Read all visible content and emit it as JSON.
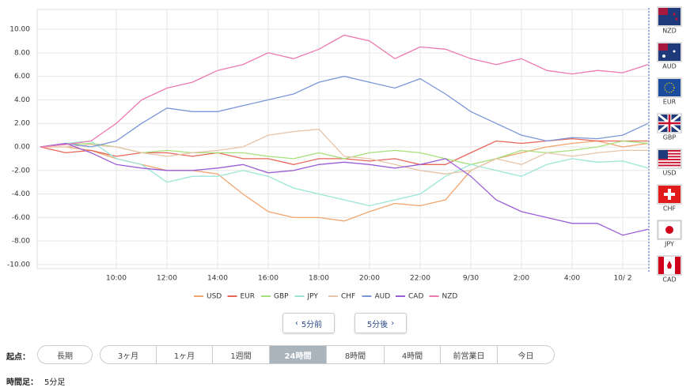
{
  "chart_data": {
    "type": "line",
    "x": [
      -3,
      -2,
      -1,
      0,
      1,
      2,
      3,
      4,
      5,
      6,
      7,
      8,
      9,
      10,
      11,
      12,
      13,
      14,
      15,
      16,
      17,
      18,
      19,
      20,
      21
    ],
    "xlim": [
      -3.125,
      21.03
    ],
    "xticks": [
      {
        "value": 0,
        "label": "10:00"
      },
      {
        "value": 2,
        "label": "12:00"
      },
      {
        "value": 4,
        "label": "14:00"
      },
      {
        "value": 6,
        "label": "16:00"
      },
      {
        "value": 8,
        "label": "18:00"
      },
      {
        "value": 10,
        "label": "20:00"
      },
      {
        "value": 12,
        "label": "22:00"
      },
      {
        "value": 14,
        "label": "9/30"
      },
      {
        "value": 16,
        "label": "2:00"
      },
      {
        "value": 18,
        "label": "4:00"
      },
      {
        "value": 20,
        "label": "10/ 2"
      }
    ],
    "ylim": [
      -10.34,
      11.68
    ],
    "yticks": [
      {
        "value": 10,
        "label": "10.00"
      },
      {
        "value": 8,
        "label": "8.00"
      },
      {
        "value": 6,
        "label": "6.00"
      },
      {
        "value": 4,
        "label": "4.00"
      },
      {
        "value": 2,
        "label": "2.00"
      },
      {
        "value": 0,
        "label": "0.00"
      },
      {
        "value": -2,
        "label": "-2.00"
      },
      {
        "value": -4,
        "label": "-4.00"
      },
      {
        "value": -6,
        "label": "-6.00"
      },
      {
        "value": -8,
        "label": "-8.00"
      },
      {
        "value": -10,
        "label": "-10.00"
      }
    ],
    "grid": true,
    "series": [
      {
        "name": "USD",
        "color": "#f2a46e",
        "values": [
          0,
          0,
          -0.3,
          -1,
          -1.5,
          -2,
          -2,
          -2.3,
          -4,
          -5.5,
          -6,
          -6,
          -6.3,
          -5.5,
          -4.8,
          -5,
          -4.5,
          -2,
          -1,
          -0.5,
          0,
          0.3,
          0.5,
          0,
          0.3
        ]
      },
      {
        "name": "EUR",
        "color": "#e8665a",
        "values": [
          0,
          -0.5,
          -0.3,
          -0.8,
          -0.5,
          -0.5,
          -0.8,
          -0.5,
          -1,
          -1,
          -1.5,
          -1,
          -1,
          -1.2,
          -1,
          -1.5,
          -1.5,
          -0.5,
          0.5,
          0.3,
          0.5,
          0.7,
          0.5,
          0.5,
          0.5
        ]
      },
      {
        "name": "GBP",
        "color": "#a6e07a",
        "values": [
          0,
          0.2,
          0.3,
          0,
          -0.5,
          -0.3,
          -0.5,
          -0.5,
          -0.5,
          -0.8,
          -1,
          -0.5,
          -1,
          -0.5,
          -0.3,
          -0.5,
          -1,
          -1.5,
          -1,
          -0.3,
          -0.5,
          -0.3,
          0,
          0.5,
          0.3
        ]
      },
      {
        "name": "JPY",
        "color": "#99e6d6",
        "values": [
          0,
          0.3,
          0.5,
          -1,
          -1.5,
          -3,
          -2.5,
          -2.5,
          -2,
          -2.5,
          -3.5,
          -4,
          -4.5,
          -5,
          -4.5,
          -4,
          -2.5,
          -1.5,
          -2,
          -2.5,
          -1.5,
          -1,
          -1.3,
          -1.2,
          -1.8
        ]
      },
      {
        "name": "CHF",
        "color": "#e6c4a8",
        "values": [
          0,
          0,
          0.2,
          0,
          -0.5,
          -0.8,
          -0.5,
          -0.3,
          0,
          1,
          1.3,
          1.5,
          -0.8,
          -1,
          -1.5,
          -2,
          -2.3,
          -2,
          -1,
          -1.5,
          -0.5,
          -0.8,
          -0.5,
          -0.3,
          -0.3
        ]
      },
      {
        "name": "AUD",
        "color": "#7b96d8",
        "values": [
          0,
          0.3,
          0,
          0.5,
          2,
          3.3,
          3,
          3,
          3.5,
          4,
          4.5,
          5.5,
          6,
          5.5,
          5,
          5.8,
          4.5,
          3,
          2,
          1,
          0.5,
          0.8,
          0.7,
          1,
          2
        ]
      },
      {
        "name": "CAD",
        "color": "#9a5fd6",
        "values": [
          0,
          0.3,
          -0.5,
          -1.5,
          -1.8,
          -2,
          -2,
          -1.8,
          -1.5,
          -2.2,
          -2,
          -1.5,
          -1.3,
          -1.5,
          -1.8,
          -1.5,
          -1,
          -2.5,
          -4.5,
          -5.5,
          -6,
          -6.5,
          -6.5,
          -7.5,
          -7
        ]
      },
      {
        "name": "NZD",
        "color": "#ec79b0",
        "values": [
          0,
          0.2,
          0.5,
          2,
          4,
          5,
          5.5,
          6.5,
          7,
          8,
          7.5,
          8.3,
          9.5,
          9,
          7.5,
          8.5,
          8.3,
          7.5,
          7,
          7.5,
          6.5,
          6.2,
          6.5,
          6.3,
          7
        ]
      }
    ]
  },
  "flags": [
    "NZD",
    "AUD",
    "EUR",
    "GBP",
    "USD",
    "CHF",
    "JPY",
    "CAD"
  ],
  "nav": {
    "prev": "5分前",
    "next": "5分後"
  },
  "period": {
    "label": "起点：",
    "tabs": [
      "長期",
      "3ヶ月",
      "1ヶ月",
      "1週間",
      "24時間",
      "8時間",
      "4時間",
      "前営業日",
      "今日"
    ],
    "active": 4
  },
  "footer": {
    "label": "時間足：",
    "value": "5分足"
  }
}
